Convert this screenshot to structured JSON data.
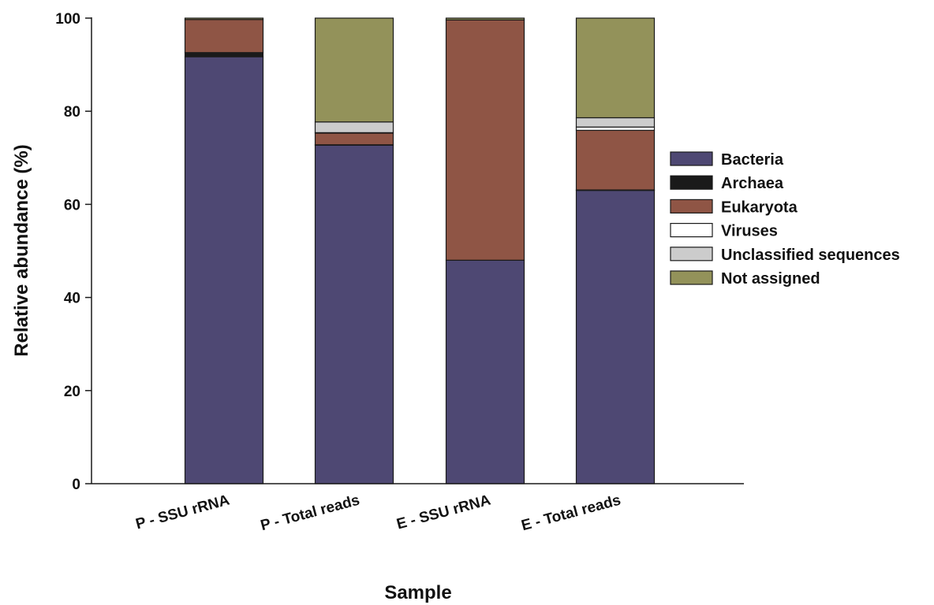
{
  "chart_data": {
    "type": "bar",
    "stacked": true,
    "title": "",
    "xlabel": "Sample",
    "ylabel": "Relative abundance (%)",
    "ylim": [
      0,
      100
    ],
    "yticks": [
      0,
      20,
      40,
      60,
      80,
      100
    ],
    "grid": false,
    "legend_position": "right",
    "categories": [
      "P - SSU rRNA",
      "P - Total reads",
      "E - SSU rRNA",
      "E - Total reads"
    ],
    "series": [
      {
        "name": "Bacteria",
        "color": "#4e4873",
        "values": [
          91.7,
          72.7,
          48.0,
          63.0
        ]
      },
      {
        "name": "Archaea",
        "color": "#1a1a1a",
        "values": [
          0.9,
          0.1,
          0.0,
          0.1
        ]
      },
      {
        "name": "Eukaryota",
        "color": "#8f5545",
        "values": [
          7.1,
          2.5,
          51.6,
          12.8
        ]
      },
      {
        "name": "Viruses",
        "color": "#ffffff",
        "values": [
          0.0,
          0.1,
          0.0,
          0.7
        ]
      },
      {
        "name": "Unclassified sequences",
        "color": "#cccccc",
        "values": [
          0.0,
          2.3,
          0.0,
          2.0
        ]
      },
      {
        "name": "Not assigned",
        "color": "#93925a",
        "values": [
          0.3,
          22.3,
          0.4,
          21.4
        ]
      }
    ]
  }
}
